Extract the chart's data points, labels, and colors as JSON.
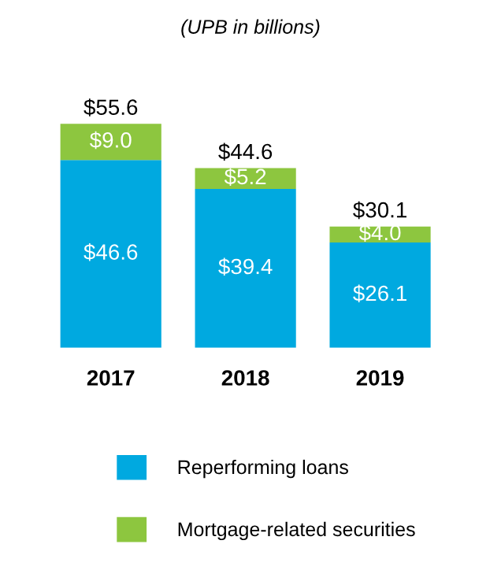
{
  "chart_data": {
    "type": "bar",
    "title": "(UPB in billions)",
    "categories": [
      "2017",
      "2018",
      "2019"
    ],
    "stacked": true,
    "legend": "bottom",
    "grid": false,
    "series": [
      {
        "name": "Reperforming loans",
        "color": "#00a9e0",
        "values": [
          46.6,
          39.4,
          26.1
        ],
        "value_labels": [
          "$46.6",
          "$39.4",
          "$26.1"
        ]
      },
      {
        "name": "Mortgage-related securities",
        "color": "#8dc63f",
        "values": [
          9.0,
          5.2,
          4.0
        ],
        "value_labels": [
          "$9.0",
          "$5.2",
          "$4.0"
        ]
      }
    ],
    "totals": [
      "$55.6",
      "$44.6",
      "$30.1"
    ]
  }
}
